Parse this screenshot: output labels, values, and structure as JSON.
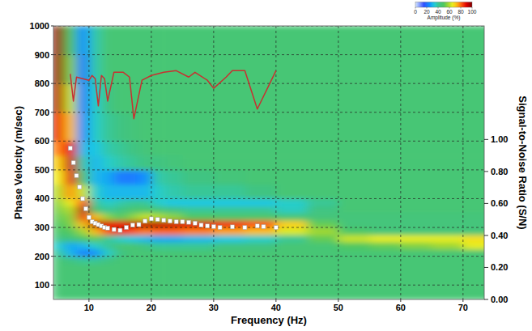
{
  "chart_data": {
    "type": "heatmap",
    "xlabel": "Frequency (Hz)",
    "ylabel": "Phase Velocity (m/sec)",
    "y2label": "Signal-to-Noise Ratio (S/N)",
    "xlim": [
      4.3,
      73.4
    ],
    "ylim": [
      50,
      1000
    ],
    "xticks": [
      10,
      20,
      30,
      40,
      50,
      60,
      70
    ],
    "yticks": [
      100,
      200,
      300,
      400,
      500,
      600,
      700,
      800,
      900,
      1000
    ],
    "y2lim": [
      0,
      1.71
    ],
    "y2ticks": [
      {
        "value": 0,
        "label": "0.00"
      },
      {
        "value": 0.2,
        "label": "0.20"
      },
      {
        "value": 0.4,
        "label": "0.40"
      },
      {
        "value": 0.6,
        "label": "0.60"
      },
      {
        "value": 0.8,
        "label": "0.80"
      },
      {
        "value": 1.0,
        "label": "1.00"
      }
    ],
    "grid": true,
    "heatmap": {
      "x_bins": [
        4,
        6,
        8,
        10,
        12,
        14,
        16,
        18,
        20,
        22,
        25,
        30,
        35,
        40,
        45,
        50,
        55,
        60,
        65,
        70,
        75
      ],
      "y_bins": [
        50,
        100,
        150,
        175,
        200,
        225,
        250,
        275,
        300,
        325,
        350,
        375,
        400,
        450,
        500,
        550,
        600,
        700,
        800,
        900,
        1000
      ],
      "cells": [
        [
          45,
          45,
          45,
          45,
          45,
          45,
          45,
          45,
          45,
          45,
          45,
          45,
          45,
          45,
          45,
          45,
          45,
          45,
          45,
          45
        ],
        [
          45,
          45,
          45,
          45,
          45,
          45,
          45,
          45,
          45,
          45,
          45,
          45,
          45,
          45,
          45,
          45,
          45,
          45,
          45,
          45
        ],
        [
          45,
          45,
          45,
          45,
          45,
          45,
          45,
          45,
          45,
          45,
          45,
          45,
          45,
          45,
          45,
          45,
          45,
          45,
          45,
          45
        ],
        [
          45,
          42,
          40,
          40,
          42,
          45,
          45,
          45,
          45,
          45,
          45,
          45,
          45,
          45,
          45,
          45,
          45,
          45,
          45,
          45
        ],
        [
          40,
          30,
          22,
          25,
          35,
          42,
          45,
          45,
          45,
          45,
          45,
          45,
          45,
          45,
          45,
          45,
          45,
          45,
          45,
          45
        ],
        [
          35,
          28,
          30,
          35,
          40,
          45,
          45,
          42,
          40,
          40,
          40,
          42,
          42,
          45,
          45,
          50,
          52,
          55,
          58,
          65
        ],
        [
          42,
          42,
          48,
          52,
          40,
          35,
          32,
          30,
          28,
          28,
          30,
          32,
          35,
          40,
          52,
          62,
          65,
          65,
          65,
          68
        ],
        [
          48,
          50,
          58,
          72,
          82,
          86,
          82,
          78,
          80,
          80,
          78,
          75,
          72,
          64,
          58,
          48,
          44,
          44,
          44,
          44
        ],
        [
          50,
          54,
          72,
          94,
          90,
          88,
          92,
          94,
          94,
          92,
          90,
          86,
          82,
          70,
          52,
          44,
          44,
          44,
          44,
          44
        ],
        [
          52,
          56,
          86,
          72,
          56,
          50,
          56,
          62,
          60,
          56,
          50,
          48,
          48,
          45,
          44,
          44,
          44,
          44,
          44,
          44
        ],
        [
          54,
          60,
          93,
          46,
          40,
          42,
          46,
          48,
          45,
          42,
          40,
          40,
          40,
          36,
          42,
          45,
          45,
          45,
          45,
          45
        ],
        [
          56,
          66,
          82,
          40,
          35,
          38,
          40,
          40,
          35,
          32,
          32,
          32,
          32,
          35,
          40,
          45,
          45,
          45,
          45,
          45
        ],
        [
          60,
          76,
          62,
          35,
          30,
          30,
          30,
          30,
          35,
          38,
          40,
          40,
          42,
          45,
          45,
          45,
          45,
          45,
          45,
          45
        ],
        [
          66,
          88,
          46,
          30,
          28,
          22,
          22,
          25,
          38,
          40,
          42,
          44,
          45,
          45,
          45,
          45,
          45,
          45,
          45,
          45
        ],
        [
          70,
          92,
          38,
          30,
          35,
          38,
          40,
          42,
          42,
          44,
          45,
          45,
          45,
          45,
          45,
          45,
          45,
          45,
          45,
          45
        ],
        [
          78,
          88,
          30,
          32,
          38,
          40,
          42,
          44,
          45,
          45,
          45,
          45,
          45,
          45,
          45,
          45,
          45,
          45,
          45,
          45
        ],
        [
          88,
          72,
          25,
          35,
          40,
          42,
          44,
          45,
          45,
          45,
          45,
          45,
          45,
          45,
          45,
          45,
          45,
          45,
          45,
          45
        ],
        [
          95,
          62,
          22,
          35,
          42,
          45,
          45,
          45,
          45,
          45,
          45,
          45,
          45,
          45,
          45,
          45,
          45,
          45,
          45,
          45
        ],
        [
          98,
          55,
          22,
          38,
          45,
          45,
          45,
          45,
          45,
          45,
          45,
          45,
          45,
          45,
          45,
          45,
          45,
          45,
          45,
          45
        ],
        [
          98,
          50,
          25,
          38,
          45,
          45,
          45,
          45,
          45,
          45,
          45,
          45,
          45,
          45,
          45,
          45,
          45,
          45,
          45,
          45
        ]
      ],
      "colorbar": {
        "title": "Amplitude (%)",
        "range": [
          0,
          100
        ],
        "ticks": [
          0,
          20,
          40,
          60,
          80,
          100
        ]
      }
    },
    "series": [
      {
        "type": "scatter",
        "marker": "square",
        "color": "#ffffff",
        "x": [
          7,
          7.5,
          8,
          8.5,
          9,
          9.5,
          10,
          10.5,
          11,
          11.5,
          12,
          12.5,
          13,
          14,
          15,
          16,
          17,
          18,
          19,
          20,
          21,
          22,
          23,
          24,
          25,
          26,
          27,
          28,
          29,
          30,
          31,
          33,
          35,
          37,
          38,
          40
        ],
        "values": [
          575,
          525,
          480,
          440,
          400,
          365,
          335,
          320,
          315,
          310,
          305,
          300,
          298,
          293,
          290,
          300,
          308,
          310,
          322,
          330,
          328,
          325,
          322,
          320,
          320,
          318,
          315,
          308,
          305,
          303,
          300,
          302,
          300,
          305,
          303,
          300
        ]
      },
      {
        "type": "line",
        "axis": "y2",
        "color": "#c83030",
        "x": [
          7,
          7.5,
          8,
          9,
          10,
          10.5,
          11,
          11.5,
          12,
          12.5,
          13,
          14,
          15.5,
          16.5,
          17.2,
          18.5,
          20,
          22,
          24,
          26,
          27,
          29,
          30,
          32,
          33,
          35,
          37,
          40
        ],
        "values": [
          1.41,
          1.24,
          1.39,
          1.38,
          1.37,
          1.4,
          1.38,
          1.21,
          1.4,
          1.38,
          1.24,
          1.42,
          1.42,
          1.39,
          1.13,
          1.37,
          1.4,
          1.42,
          1.43,
          1.39,
          1.42,
          1.37,
          1.32,
          1.39,
          1.43,
          1.43,
          1.19,
          1.43
        ]
      }
    ]
  }
}
